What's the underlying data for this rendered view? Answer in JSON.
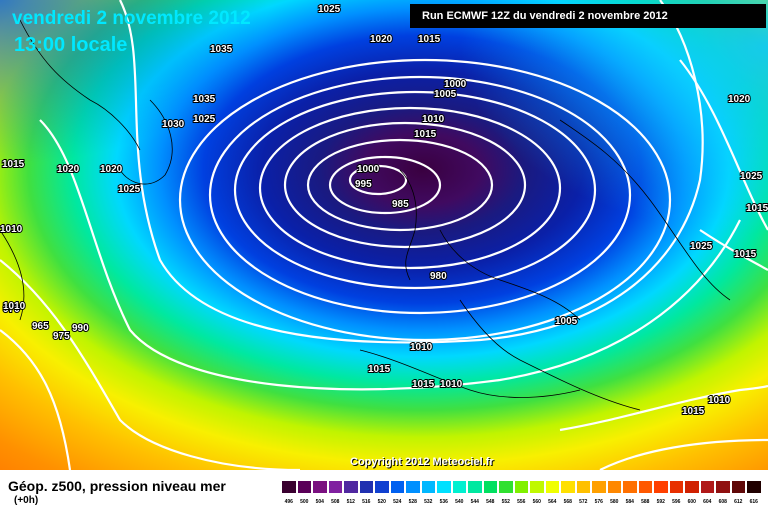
{
  "header": {
    "date_title": "vendredi 2 novembre 2012",
    "time_title": "13:00 locale",
    "run_info": "Run ECMWF 12Z du vendredi 2 novembre 2012"
  },
  "footer": {
    "parameter_label": "Géop. z500, pression niveau mer",
    "step_label": "(+0h)",
    "copyright": "Copyright 2012 Meteociel.fr"
  },
  "isobar_labels": [
    "1025",
    "1035",
    "1020",
    "1015",
    "1035",
    "1030",
    "1025",
    "1015",
    "1020",
    "1020",
    "1025",
    "1010",
    "1000",
    "1005",
    "1010",
    "1015",
    "1000",
    "995",
    "985",
    "980",
    "970",
    "965",
    "975",
    "990",
    "1010",
    "1005",
    "1010",
    "1015",
    "1015",
    "1010",
    "1020",
    "1025",
    "1015",
    "1025",
    "1015",
    "1015",
    "1010"
  ],
  "color_scale": {
    "values": [
      "496",
      "500",
      "504",
      "508",
      "512",
      "516",
      "520",
      "524",
      "528",
      "532",
      "536",
      "540",
      "544",
      "548",
      "552",
      "556",
      "560",
      "564",
      "568",
      "572",
      "576",
      "580",
      "584",
      "588",
      "592",
      "596",
      "600",
      "604",
      "608",
      "612",
      "616"
    ],
    "colors": [
      "#3a0030",
      "#5a0058",
      "#7a1080",
      "#8020a0",
      "#5028a0",
      "#2030b0",
      "#1040d0",
      "#0060f0",
      "#0090ff",
      "#00b8ff",
      "#00e0ff",
      "#00f0d0",
      "#00e8a0",
      "#00e060",
      "#30e030",
      "#80f000",
      "#c0f800",
      "#f0ff00",
      "#ffe000",
      "#ffc000",
      "#ffa000",
      "#ff8800",
      "#ff7000",
      "#ff5800",
      "#ff4000",
      "#e83000",
      "#d02000",
      "#b01818",
      "#901010",
      "#600808",
      "#200000"
    ]
  }
}
